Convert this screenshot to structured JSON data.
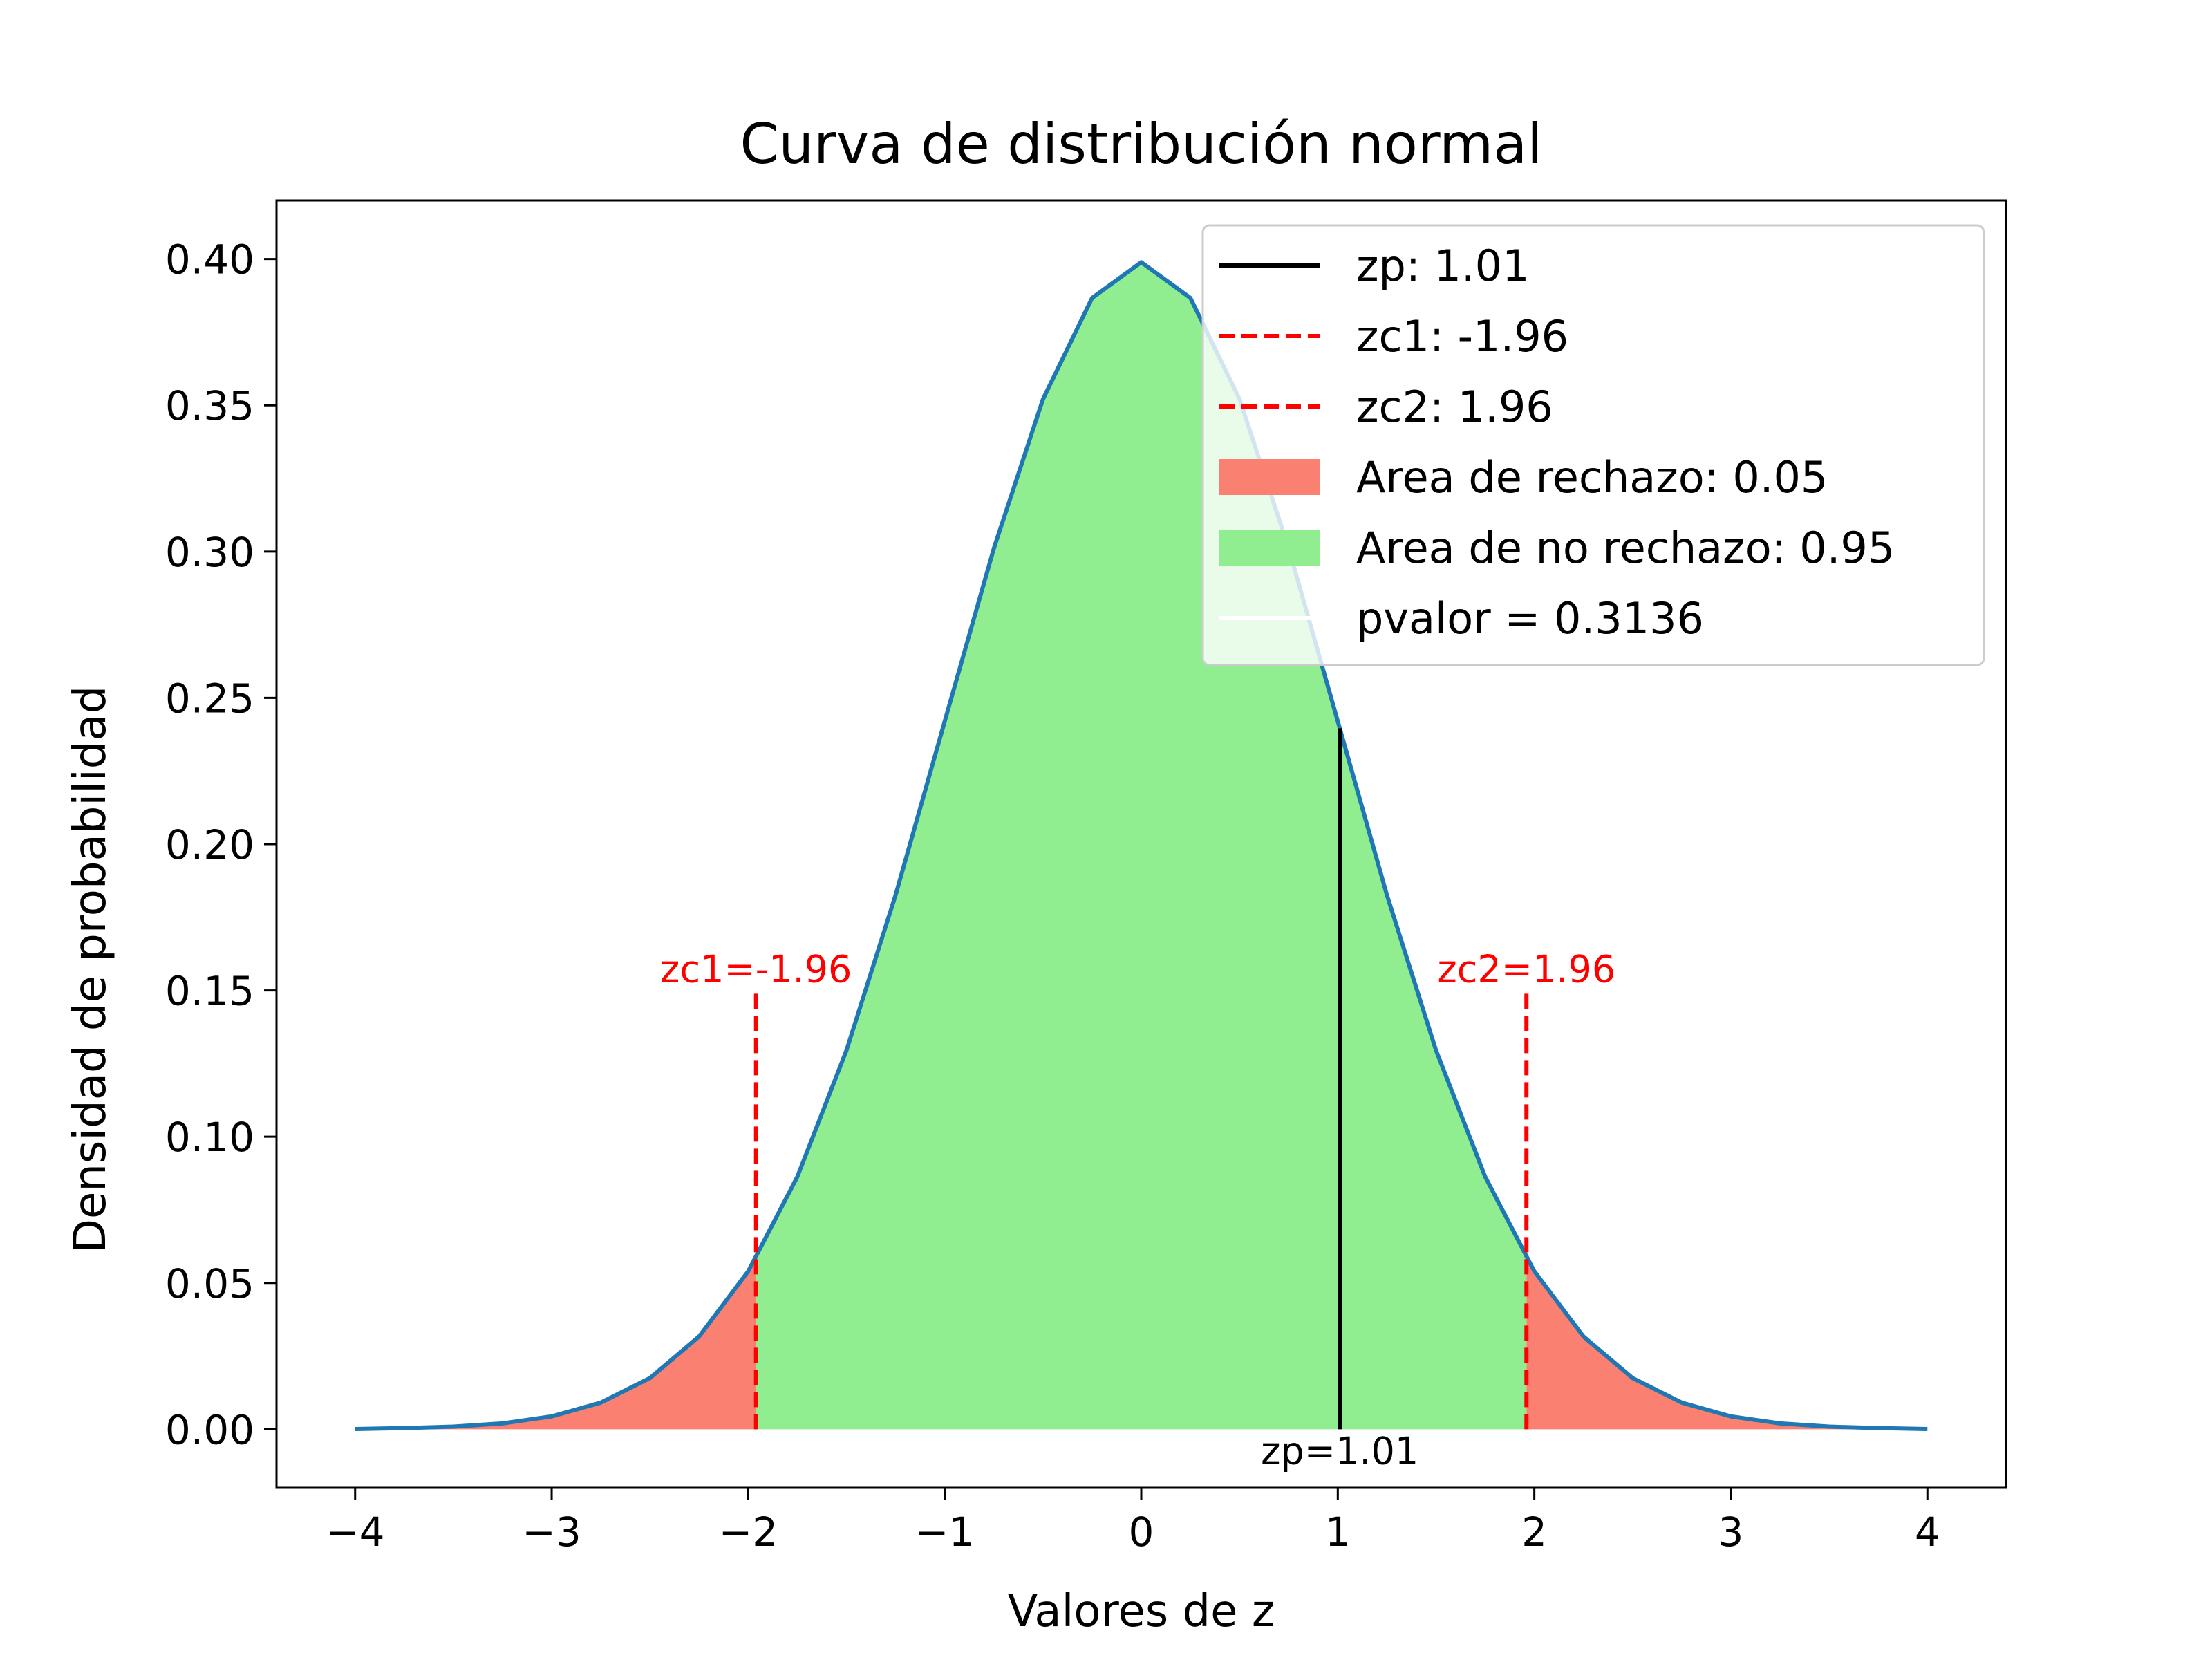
{
  "chart_data": {
    "type": "area",
    "title": "Curva de distribución normal",
    "xlabel": "Valores de z",
    "ylabel": "Densidad de probabilidad",
    "xlim": [
      -4.4,
      4.4
    ],
    "ylim": [
      -0.02,
      0.42
    ],
    "x_ticks": [
      -4,
      -3,
      -2,
      -1,
      0,
      1,
      2,
      3,
      4
    ],
    "x_tick_labels": [
      "−4",
      "−3",
      "−2",
      "−1",
      "0",
      "1",
      "2",
      "3",
      "4"
    ],
    "y_ticks": [
      0.0,
      0.05,
      0.1,
      0.15,
      0.2,
      0.25,
      0.3,
      0.35,
      0.4
    ],
    "y_tick_labels": [
      "0.00",
      "0.05",
      "0.10",
      "0.15",
      "0.20",
      "0.25",
      "0.30",
      "0.35",
      "0.40"
    ],
    "curve": {
      "x": [
        -4.0,
        -3.75,
        -3.5,
        -3.25,
        -3.0,
        -2.75,
        -2.5,
        -2.25,
        -2.0,
        -1.75,
        -1.5,
        -1.25,
        -1.0,
        -0.75,
        -0.5,
        -0.25,
        0.0,
        0.25,
        0.5,
        0.75,
        1.0,
        1.25,
        1.5,
        1.75,
        2.0,
        2.25,
        2.5,
        2.75,
        3.0,
        3.25,
        3.5,
        3.75,
        4.0
      ],
      "y": [
        0.0001,
        0.0004,
        0.0009,
        0.002,
        0.0044,
        0.0091,
        0.0175,
        0.0317,
        0.054,
        0.0863,
        0.1295,
        0.1826,
        0.242,
        0.3011,
        0.3521,
        0.3867,
        0.3989,
        0.3867,
        0.3521,
        0.3011,
        0.242,
        0.1826,
        0.1295,
        0.0863,
        0.054,
        0.0317,
        0.0175,
        0.0091,
        0.0044,
        0.002,
        0.0009,
        0.0004,
        0.0001
      ],
      "color": "#1f77b4"
    },
    "rejection_regions": [
      {
        "x": [
          -4.0,
          -3.75,
          -3.5,
          -3.25,
          -3.0,
          -2.75,
          -2.5,
          -2.25,
          -2.0,
          -1.96
        ],
        "y": [
          0.0001,
          0.0004,
          0.0009,
          0.002,
          0.0044,
          0.0091,
          0.0175,
          0.0317,
          0.054,
          0.0584
        ]
      },
      {
        "x": [
          1.96,
          2.0,
          2.25,
          2.5,
          2.75,
          3.0,
          3.25,
          3.5,
          3.75,
          4.0
        ],
        "y": [
          0.0584,
          0.054,
          0.0317,
          0.0175,
          0.0091,
          0.0044,
          0.002,
          0.0009,
          0.0004,
          0.0001
        ]
      }
    ],
    "acceptance_region": {
      "x": [
        -1.96,
        -1.75,
        -1.5,
        -1.25,
        -1.0,
        -0.75,
        -0.5,
        -0.25,
        0.0,
        0.25,
        0.5,
        0.75,
        1.0,
        1.25,
        1.5,
        1.75,
        1.96
      ],
      "y": [
        0.0584,
        0.0863,
        0.1295,
        0.1826,
        0.242,
        0.3011,
        0.3521,
        0.3867,
        0.3989,
        0.3867,
        0.3521,
        0.3011,
        0.242,
        0.1826,
        0.1295,
        0.0863,
        0.0584
      ]
    },
    "vlines": [
      {
        "x": 1.01,
        "y0": 0.0,
        "y1": 0.2396,
        "color": "#000000",
        "style": "solid",
        "label": "zp=1.01",
        "label_pos": "below"
      },
      {
        "x": -1.96,
        "y0": 0.0,
        "y1": 0.15,
        "color": "#ff0000",
        "style": "dashed",
        "label": "zc1=-1.96",
        "label_pos": "above"
      },
      {
        "x": 1.96,
        "y0": 0.0,
        "y1": 0.15,
        "color": "#ff0000",
        "style": "dashed",
        "label": "zc2=1.96",
        "label_pos": "above"
      }
    ],
    "colors": {
      "rejection": "#fa8072",
      "acceptance": "#90ee90"
    },
    "legend": {
      "position": "top-right",
      "entries": [
        {
          "label": "zp: 1.01",
          "kind": "line",
          "color": "#000000",
          "style": "solid"
        },
        {
          "label": "zc1: -1.96",
          "kind": "line",
          "color": "#ff0000",
          "style": "dashed"
        },
        {
          "label": "zc2: 1.96",
          "kind": "line",
          "color": "#ff0000",
          "style": "dashed"
        },
        {
          "label": "Area de rechazo: 0.05",
          "kind": "patch",
          "color": "#fa8072"
        },
        {
          "label": "Area de no rechazo: 0.95",
          "kind": "patch",
          "color": "#90ee90"
        },
        {
          "label": "pvalor = 0.3136",
          "kind": "line",
          "color": "#ffffff",
          "style": "solid"
        }
      ]
    }
  }
}
